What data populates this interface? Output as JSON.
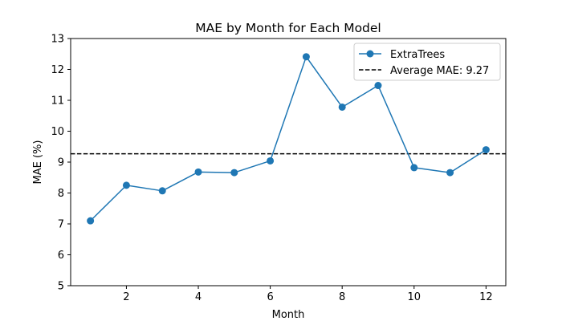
{
  "chart_data": {
    "type": "line",
    "title": "MAE by Month for Each Model",
    "xlabel": "Month",
    "ylabel": "MAE (%)",
    "xlim": [
      0.45,
      12.55
    ],
    "ylim": [
      5,
      13
    ],
    "x_ticks": [
      2,
      4,
      6,
      8,
      10,
      12
    ],
    "y_ticks": [
      5,
      6,
      7,
      8,
      9,
      10,
      11,
      12,
      13
    ],
    "grid": false,
    "legend_position": "top-right",
    "series": [
      {
        "name": "ExtraTrees",
        "color": "#1f77b4",
        "marker": "circle",
        "x": [
          1,
          2,
          3,
          4,
          5,
          6,
          7,
          8,
          9,
          10,
          11,
          12
        ],
        "values": [
          7.1,
          8.25,
          8.07,
          8.68,
          8.66,
          9.04,
          12.41,
          10.78,
          11.48,
          8.82,
          8.66,
          9.4
        ]
      }
    ],
    "reference_lines": [
      {
        "label": "Average MAE: 9.27",
        "y": 9.27,
        "color": "#000000",
        "style": "dashed"
      }
    ]
  }
}
